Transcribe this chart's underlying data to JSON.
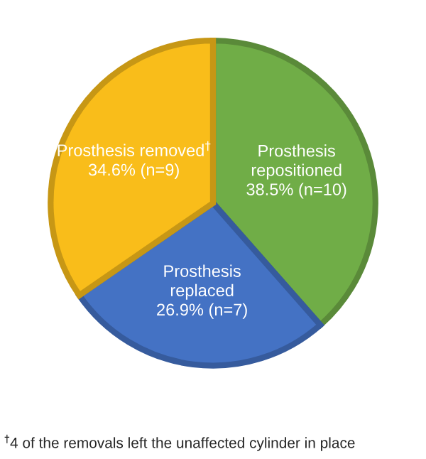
{
  "chart_data": {
    "type": "pie",
    "categories": [
      "Prosthesis\nrepositioned",
      "Prosthesis\nreplaced",
      "Prosthesis removed$^{†}$"
    ],
    "values": [
      38.5,
      26.9,
      34.6
    ],
    "value_labels": [
      "38.5% (n=10)",
      "26.9% (n=7)",
      "34.6% (n=9)"
    ],
    "colors": [
      "#70ad47",
      "#4472c4",
      "#f9bd1a"
    ],
    "annotations": [
      "$^{†}$4 of the removals left the unaffected cylinder in place"
    ],
    "legend": false
  }
}
